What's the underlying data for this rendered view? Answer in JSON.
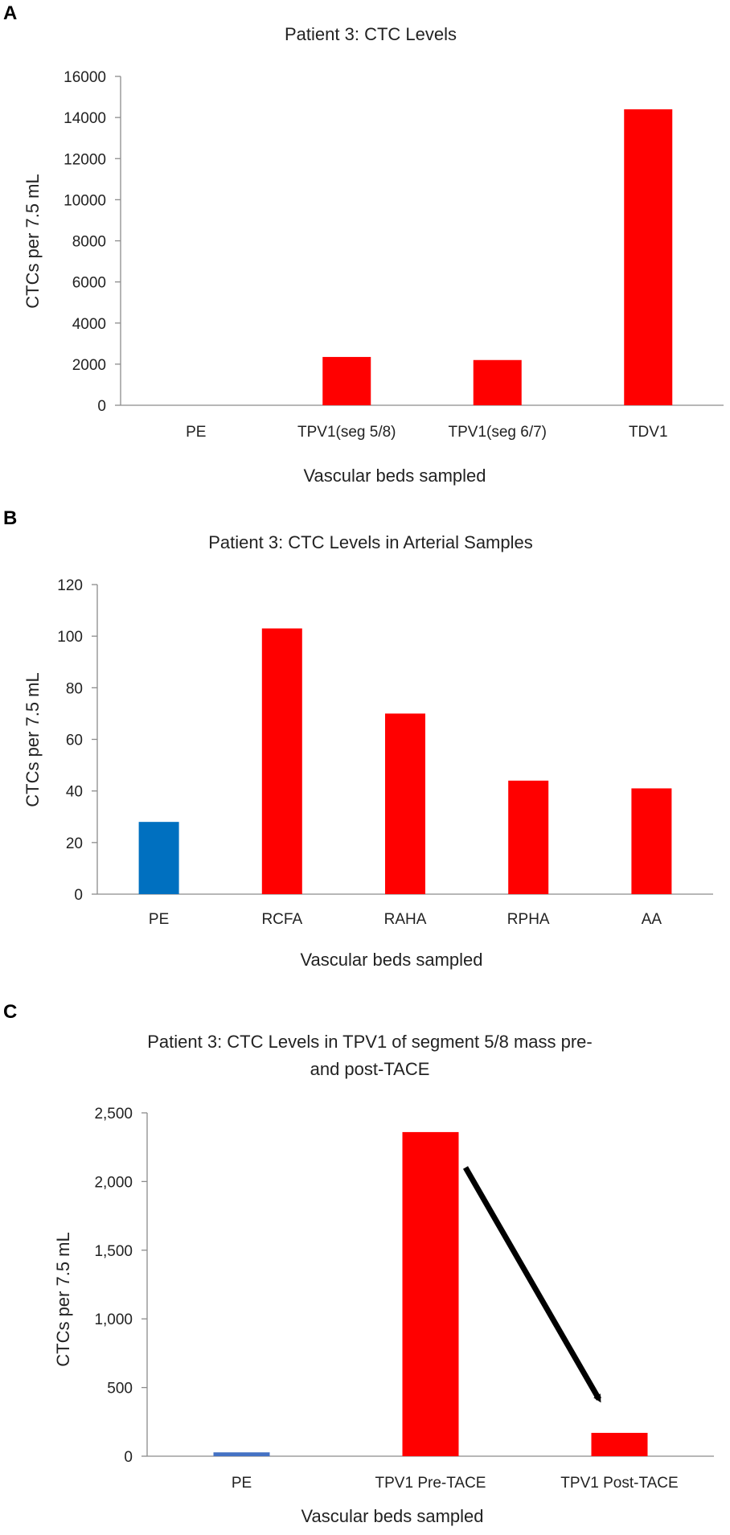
{
  "panels": [
    {
      "label": "A"
    },
    {
      "label": "B"
    },
    {
      "label": "C"
    }
  ],
  "chart_data": [
    {
      "type": "bar",
      "title": "Patient 3: CTC Levels",
      "xlabel": "Vascular beds sampled",
      "ylabel": "CTCs per 7.5 mL",
      "ylim": [
        0,
        16000
      ],
      "yticks": [
        0,
        2000,
        4000,
        6000,
        8000,
        10000,
        12000,
        14000,
        16000
      ],
      "ytick_labels": [
        "0",
        "2000",
        "4000",
        "6000",
        "8000",
        "10000",
        "12000",
        "14000",
        "16000"
      ],
      "categories": [
        "PE",
        "TPV1(seg 5/8)",
        "TPV1(seg 6/7)",
        "TDV1"
      ],
      "values": [
        0,
        2350,
        2200,
        14400
      ],
      "colors": [
        "#ff0000",
        "#ff0000",
        "#ff0000",
        "#ff0000"
      ]
    },
    {
      "type": "bar",
      "title": "Patient 3: CTC Levels in Arterial Samples",
      "xlabel": "Vascular beds sampled",
      "ylabel": "CTCs per 7.5 mL",
      "ylim": [
        0,
        120
      ],
      "yticks": [
        0,
        20,
        40,
        60,
        80,
        100,
        120
      ],
      "ytick_labels": [
        "0",
        "20",
        "40",
        "60",
        "80",
        "100",
        "120"
      ],
      "categories": [
        "PE",
        "RCFA",
        "RAHA",
        "RPHA",
        "AA"
      ],
      "values": [
        28,
        103,
        70,
        44,
        41
      ],
      "colors": [
        "#0070c0",
        "#ff0000",
        "#ff0000",
        "#ff0000",
        "#ff0000"
      ]
    },
    {
      "type": "bar",
      "title_lines": [
        "Patient 3: CTC Levels in TPV1 of segment 5/8 mass pre-",
        "and post-TACE"
      ],
      "xlabel": "Vascular beds sampled",
      "ylabel": "CTCs per 7.5 mL",
      "ylim": [
        0,
        2500
      ],
      "yticks": [
        0,
        500,
        1000,
        1500,
        2000,
        2500
      ],
      "ytick_labels": [
        "0",
        "500",
        "1,000",
        "1,500",
        "2,000",
        "2,500"
      ],
      "categories": [
        "PE",
        "TPV1 Pre-TACE",
        "TPV1 Post-TACE"
      ],
      "values": [
        28,
        2360,
        170
      ],
      "colors": [
        "#4472c4",
        "#ff0000",
        "#ff0000"
      ],
      "annotation": "arrow from TPV1 Pre-TACE to TPV1 Post-TACE indicating decrease"
    }
  ]
}
